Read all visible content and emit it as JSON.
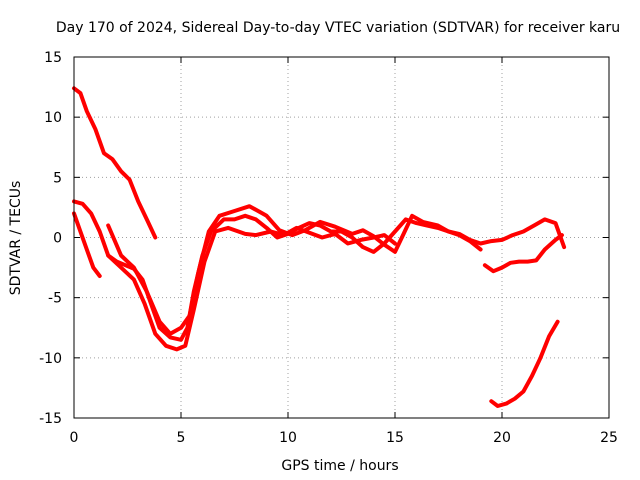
{
  "chart_data": {
    "type": "line",
    "title": "Day 170 of 2024, Sidereal Day-to-day VTEC variation (SDTVAR) for receiver karu",
    "xlabel": "GPS time / hours",
    "ylabel": "SDTVAR / TECUs",
    "xlim": [
      0,
      25
    ],
    "ylim": [
      -15,
      15
    ],
    "xticks": [
      0,
      5,
      10,
      15,
      20,
      25
    ],
    "yticks": [
      -15,
      -10,
      -5,
      0,
      5,
      10,
      15
    ],
    "xtick_labels": [
      "0",
      "5",
      "10",
      "15",
      "20",
      "25"
    ],
    "ytick_labels": [
      "-15",
      "-10",
      "-5",
      "0",
      "5",
      "10",
      "15"
    ],
    "grid": true,
    "color": "#ff0000",
    "series": [
      {
        "name": "track-1",
        "x": [
          0.0,
          0.3,
          0.6,
          1.0,
          1.4,
          1.8,
          2.2,
          2.6,
          3.0,
          3.4,
          3.8
        ],
        "y": [
          12.4,
          12.0,
          10.5,
          9.0,
          7.0,
          6.5,
          5.5,
          4.8,
          3.0,
          1.5,
          0.0
        ]
      },
      {
        "name": "track-2",
        "x": [
          0.0,
          0.3,
          0.6,
          0.9,
          1.2
        ],
        "y": [
          2.0,
          0.5,
          -1.0,
          -2.5,
          -3.2
        ]
      },
      {
        "name": "track-3",
        "x": [
          0.0,
          0.4,
          0.8,
          1.2,
          1.6,
          2.0,
          2.4,
          2.8,
          3.2,
          3.6,
          4.0,
          4.5,
          5.0,
          5.3,
          5.6,
          6.0,
          6.4,
          7.0,
          7.5,
          8.0,
          8.5,
          9.0,
          9.5,
          10.0,
          10.5,
          11.0,
          11.5,
          12.0,
          12.5,
          13.0,
          13.5,
          14.0,
          14.5,
          15.0,
          15.5,
          16.0,
          16.5,
          17.0,
          17.5,
          18.0,
          18.5,
          19.0,
          19.5,
          20.0,
          20.5,
          21.0,
          21.5,
          22.0,
          22.5,
          22.9
        ],
        "y": [
          3.0,
          2.8,
          2.0,
          0.5,
          -1.5,
          -2.0,
          -2.3,
          -2.6,
          -3.5,
          -5.5,
          -7.5,
          -8.3,
          -8.5,
          -7.5,
          -4.5,
          -1.5,
          0.5,
          1.5,
          1.5,
          1.8,
          1.5,
          0.8,
          0.0,
          0.3,
          0.8,
          1.2,
          1.0,
          0.5,
          0.5,
          0.0,
          -0.8,
          -1.2,
          -0.5,
          0.5,
          1.5,
          1.2,
          1.0,
          0.8,
          0.5,
          0.3,
          -0.2,
          -0.5,
          -0.3,
          -0.2,
          0.2,
          0.5,
          1.0,
          1.5,
          1.2,
          -0.8
        ]
      },
      {
        "name": "track-4",
        "x": [
          1.6,
          2.2,
          2.8,
          3.4,
          4.0,
          4.5,
          5.0,
          5.4,
          5.8,
          6.3,
          6.8,
          7.5,
          8.2,
          9.0,
          9.6,
          10.2,
          10.8,
          11.5,
          12.2,
          13.0,
          13.5,
          14.0,
          14.5,
          15.0,
          15.4,
          15.8,
          16.3,
          17.0,
          17.5,
          18.0,
          18.5,
          19.0
        ],
        "y": [
          1.0,
          -1.5,
          -2.5,
          -4.5,
          -7.0,
          -8.0,
          -7.5,
          -6.5,
          -3.0,
          0.5,
          1.8,
          2.2,
          2.6,
          1.8,
          0.6,
          0.2,
          0.6,
          1.3,
          0.9,
          0.3,
          0.6,
          0.1,
          -0.6,
          -1.2,
          0.3,
          1.8,
          1.3,
          1.0,
          0.5,
          0.2,
          -0.3,
          -1.0
        ]
      },
      {
        "name": "track-5",
        "x": [
          1.6,
          2.2,
          2.8,
          3.3,
          3.8,
          4.3,
          4.8,
          5.2,
          5.6,
          6.1,
          6.6,
          7.2,
          8.0,
          8.5,
          9.2,
          9.8,
          10.4,
          11.0,
          11.6,
          12.2,
          12.8,
          13.4,
          14.0,
          14.5,
          15.0
        ],
        "y": [
          -1.5,
          -2.5,
          -3.5,
          -5.5,
          -8.0,
          -9.0,
          -9.3,
          -9.0,
          -6.0,
          -2.0,
          0.5,
          0.8,
          0.3,
          0.2,
          0.5,
          0.2,
          0.8,
          0.4,
          0.0,
          0.3,
          -0.5,
          -0.2,
          0.0,
          0.2,
          -0.5
        ]
      },
      {
        "name": "track-6",
        "x": [
          19.2,
          19.6,
          20.0,
          20.4,
          20.8,
          21.2,
          21.6,
          22.0,
          22.5,
          22.8
        ],
        "y": [
          -2.3,
          -2.8,
          -2.5,
          -2.1,
          -2.0,
          -2.0,
          -1.9,
          -1.0,
          -0.2,
          0.2
        ]
      },
      {
        "name": "track-7",
        "x": [
          19.5,
          19.8,
          20.2,
          20.6,
          21.0,
          21.4,
          21.8,
          22.2,
          22.6
        ],
        "y": [
          -13.6,
          -14.0,
          -13.8,
          -13.4,
          -12.8,
          -11.5,
          -10.0,
          -8.2,
          -7.0
        ]
      }
    ]
  }
}
